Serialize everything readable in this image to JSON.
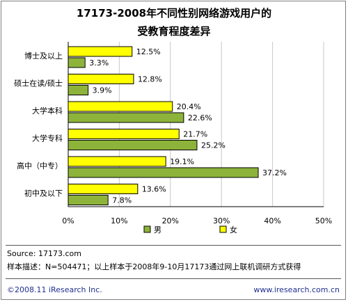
{
  "chart_data": {
    "type": "bar",
    "orientation": "horizontal",
    "title": [
      "17173-2008年不同性别网络游戏用户的",
      "受教育程度差异"
    ],
    "categories": [
      "博士及以上",
      "硕士在读/硕士",
      "大学本科",
      "大学专科",
      "高中（中专）",
      "初中及以下"
    ],
    "series": [
      {
        "name": "男",
        "values": [
          3.3,
          3.9,
          22.6,
          25.2,
          37.2,
          7.8
        ],
        "color": "#8db33a"
      },
      {
        "name": "女",
        "values": [
          12.5,
          12.8,
          20.4,
          21.7,
          19.1,
          13.6
        ],
        "color": "#ffff00"
      }
    ],
    "value_labels": {
      "男": [
        "3.3%",
        "3.9%",
        "22.6%",
        "25.2%",
        "37.2%",
        "7.8%"
      ],
      "女": [
        "12.5%",
        "12.8%",
        "20.4%",
        "21.7%",
        "19.1%",
        "13.6%"
      ]
    },
    "xticks": [
      "0%",
      "10%",
      "20%",
      "30%",
      "40%",
      "50%"
    ],
    "xlim": [
      0,
      50
    ],
    "grid": true,
    "legend_position": "bottom"
  },
  "footer": {
    "source": "Source:  17173.com",
    "sample": "样本描述：N=504471；以上样本于2008年9-10月17173通过网上联机调研方式获得",
    "copyright": "©2008.11 iResearch Inc.",
    "website": "www.iresearch.com.cn"
  }
}
